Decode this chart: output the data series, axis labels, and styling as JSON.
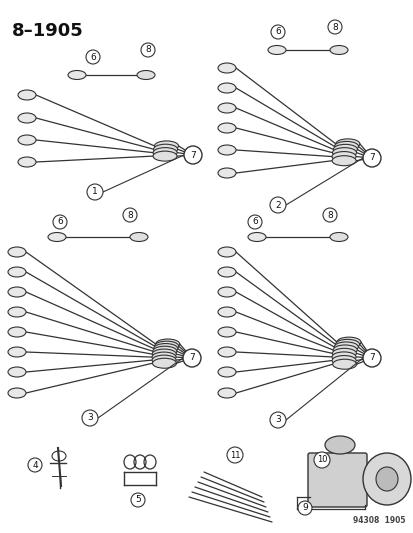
{
  "title": "8–1905",
  "bg_color": "#ffffff",
  "line_color": "#333333",
  "label_color": "#111111",
  "watermark": "94308  1905",
  "fig_w": 4.14,
  "fig_h": 5.33,
  "dpi": 100
}
